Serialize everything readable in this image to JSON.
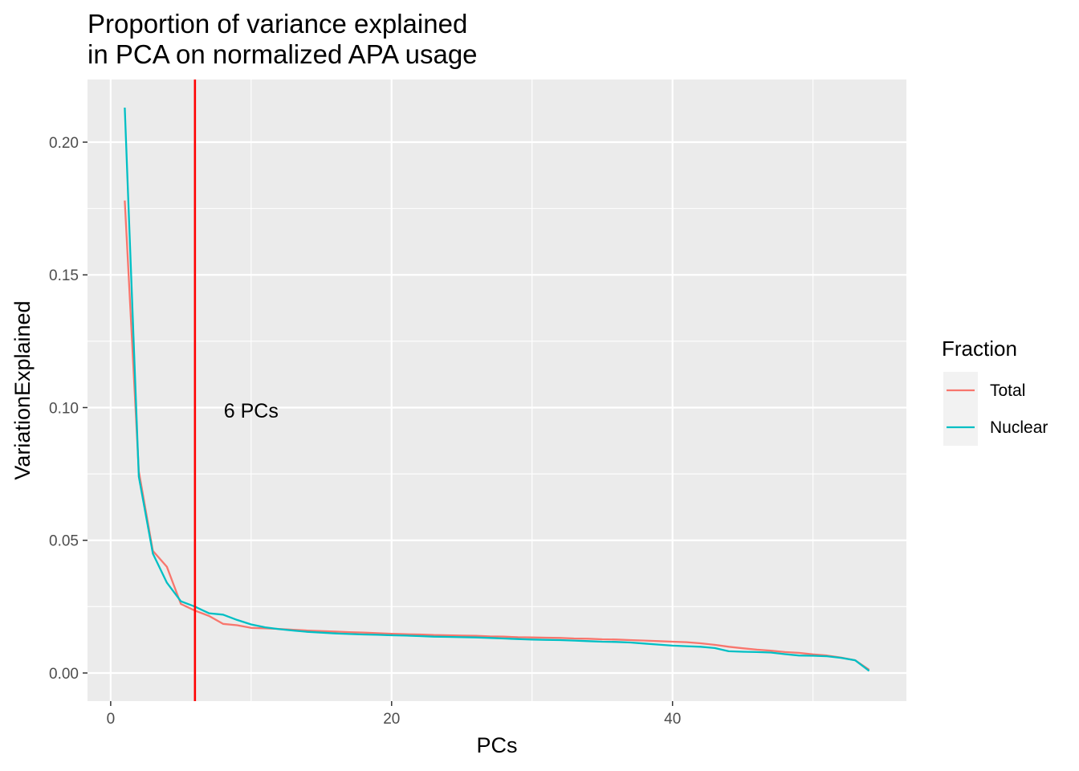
{
  "chart_data": {
    "type": "line",
    "title_lines": [
      "Proportion of variance explained",
      "in PCA on normalized APA usage"
    ],
    "xlabel": "PCs",
    "ylabel": "VariationExplained",
    "xlim": [
      -1.65,
      56.65
    ],
    "ylim": [
      -0.0106,
      0.2236
    ],
    "x_ticks": [
      0,
      20,
      40
    ],
    "x_tick_labels": [
      "0",
      "20",
      "40"
    ],
    "y_ticks": [
      0.0,
      0.05,
      0.1,
      0.15,
      0.2
    ],
    "y_tick_labels": [
      "0.00",
      "0.05",
      "0.10",
      "0.15",
      "0.20"
    ],
    "grid": true,
    "legend": {
      "title": "Fraction",
      "position": "right",
      "entries": [
        "Total",
        "Nuclear"
      ]
    },
    "vline": {
      "x": 6,
      "color": "#ff0000"
    },
    "annotation": {
      "text": "6 PCs",
      "x": 10,
      "y": 0.099
    },
    "colors": {
      "Total": "#f8766d",
      "Nuclear": "#00bfc4"
    },
    "series": [
      {
        "name": "Total",
        "x": [
          1,
          2,
          3,
          4,
          5,
          6,
          7,
          8,
          9,
          10,
          11,
          12,
          13,
          14,
          15,
          16,
          17,
          18,
          19,
          20,
          21,
          22,
          23,
          24,
          25,
          26,
          27,
          28,
          29,
          30,
          31,
          32,
          33,
          34,
          35,
          36,
          37,
          38,
          39,
          40,
          41,
          42,
          43,
          44,
          45,
          46,
          47,
          48,
          49,
          50,
          51,
          52,
          53,
          54
        ],
        "values": [
          0.178,
          0.076,
          0.046,
          0.04,
          0.026,
          0.0235,
          0.0215,
          0.0185,
          0.018,
          0.017,
          0.0168,
          0.0166,
          0.0163,
          0.016,
          0.0158,
          0.0156,
          0.0154,
          0.0152,
          0.015,
          0.0148,
          0.0146,
          0.0145,
          0.0143,
          0.0142,
          0.0141,
          0.014,
          0.0138,
          0.0137,
          0.0135,
          0.0134,
          0.0133,
          0.0132,
          0.013,
          0.0129,
          0.0127,
          0.0126,
          0.0124,
          0.0122,
          0.012,
          0.0118,
          0.0116,
          0.0112,
          0.0106,
          0.0099,
          0.0093,
          0.0088,
          0.0084,
          0.0079,
          0.0076,
          0.007,
          0.0066,
          0.0058,
          0.0048,
          0.0012
        ]
      },
      {
        "name": "Nuclear",
        "x": [
          1,
          2,
          3,
          4,
          5,
          6,
          7,
          8,
          9,
          10,
          11,
          12,
          13,
          14,
          15,
          16,
          17,
          18,
          19,
          20,
          21,
          22,
          23,
          24,
          25,
          26,
          27,
          28,
          29,
          30,
          31,
          32,
          33,
          34,
          35,
          36,
          37,
          38,
          39,
          40,
          41,
          42,
          43,
          44,
          45,
          46,
          47,
          48,
          49,
          50,
          51,
          52,
          53,
          54
        ],
        "values": [
          0.213,
          0.074,
          0.045,
          0.034,
          0.027,
          0.025,
          0.0225,
          0.022,
          0.02,
          0.0183,
          0.0172,
          0.0165,
          0.016,
          0.0155,
          0.0152,
          0.0149,
          0.0147,
          0.0145,
          0.0144,
          0.0142,
          0.0141,
          0.0139,
          0.0137,
          0.0136,
          0.0135,
          0.0134,
          0.0132,
          0.013,
          0.0128,
          0.0126,
          0.0125,
          0.0124,
          0.0122,
          0.012,
          0.0118,
          0.0117,
          0.0115,
          0.0111,
          0.0107,
          0.0103,
          0.0101,
          0.0099,
          0.0094,
          0.0082,
          0.008,
          0.0079,
          0.0077,
          0.0071,
          0.0066,
          0.0065,
          0.0063,
          0.0057,
          0.0048,
          0.0008
        ]
      }
    ]
  }
}
